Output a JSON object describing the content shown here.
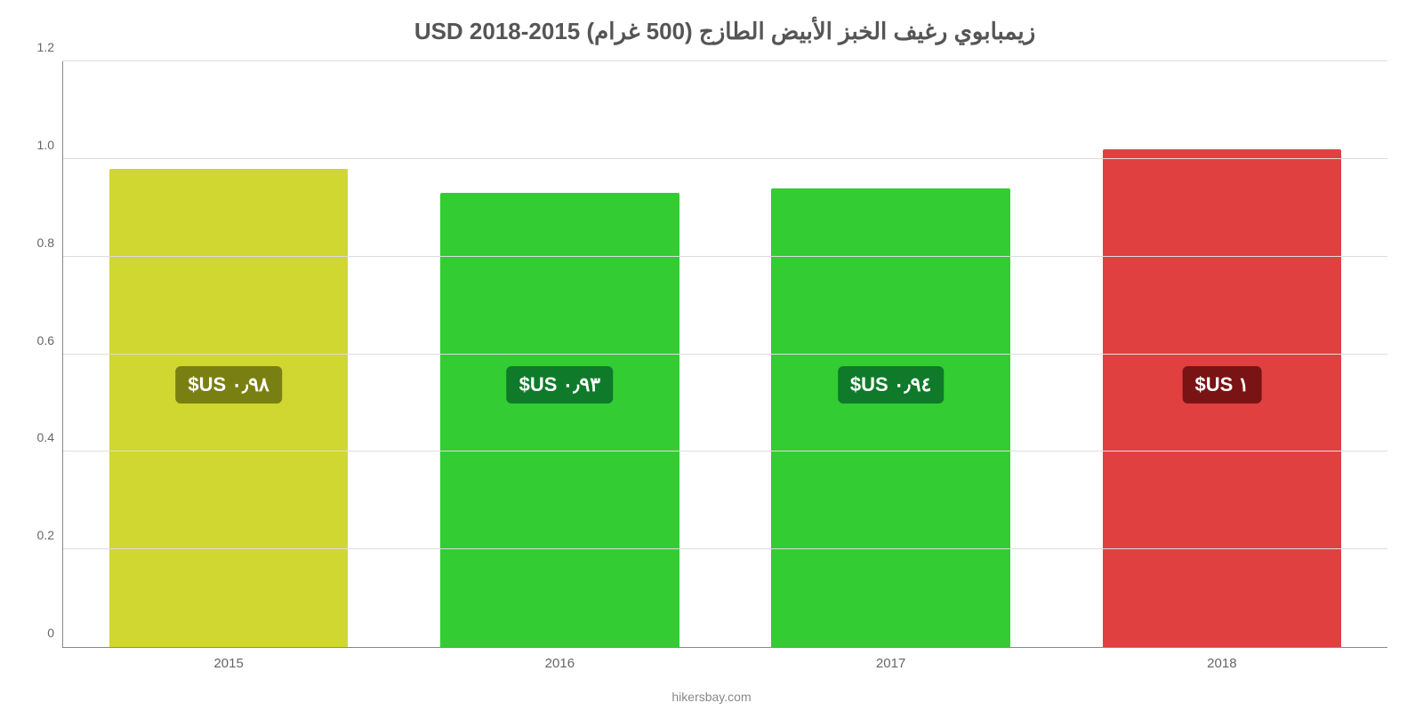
{
  "chart": {
    "type": "bar",
    "title": "زيمبابوي رغيف الخبز الأبيض الطازج (500 غرام) USD 2018-2015",
    "title_color": "#555555",
    "title_fontsize": 26,
    "background_color": "#ffffff",
    "grid_color": "#dddddd",
    "axis_color": "#888888",
    "ylim": [
      0,
      1.2
    ],
    "yticks": [
      0,
      0.2,
      0.4,
      0.6,
      0.8,
      1.0,
      1.2
    ],
    "ytick_labels": [
      "0",
      "0.2",
      "0.4",
      "0.6",
      "0.8",
      "1.0",
      "1.2"
    ],
    "ytick_fontsize": 14,
    "xtick_fontsize": 15,
    "tick_color": "#666666",
    "categories": [
      "2015",
      "2016",
      "2017",
      "2018"
    ],
    "values": [
      0.98,
      0.93,
      0.94,
      1.02
    ],
    "bar_colors": [
      "#cfd730",
      "#33cc33",
      "#33cc33",
      "#e04040"
    ],
    "value_labels": [
      "٠٫٩٨ US$",
      "٠٫٩٣ US$",
      "٠٫٩٤ US$",
      "١ US$"
    ],
    "value_label_bg": [
      "#7a7f12",
      "#0f7a2a",
      "#0f7a2a",
      "#7a1414"
    ],
    "value_label_color": "#ffffff",
    "value_label_fontsize": 22,
    "footer": "hikersbay.com",
    "footer_color": "#888888",
    "bar_width_ratio": 0.82,
    "label_center_value": 0.54
  }
}
